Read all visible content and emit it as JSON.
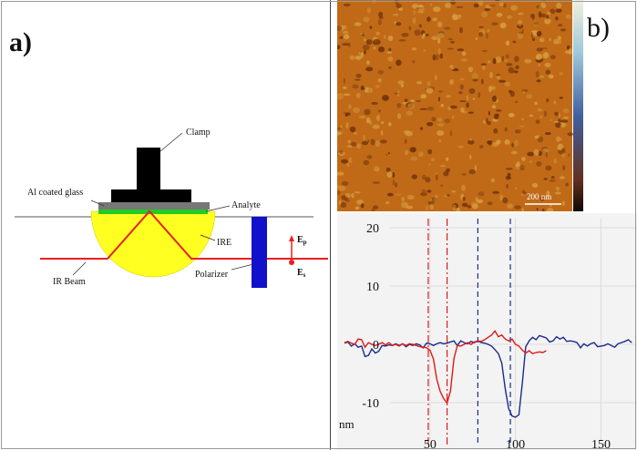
{
  "panel_a": {
    "label": "a)",
    "labels": {
      "clamp": "Clamp",
      "al_glass": "Al coated glass",
      "analyte": "Analyte",
      "ire": "IRE",
      "ir_beam": "IR Beam",
      "polarizer": "Polarizer",
      "ep_main": "E",
      "ep_sub": "p",
      "es_main": "E",
      "es_sub": "s"
    },
    "colors": {
      "clamp": "#000000",
      "glass": "#777777",
      "analyte": "#22cc22",
      "ire": "#ffff22",
      "beam": "#e82020",
      "polarizer": "#1111cc"
    }
  },
  "panel_b": {
    "label": "b)",
    "scale_bar": "200 nm",
    "afm_colors": {
      "base": "#c06a18",
      "dark": "#6a2e08",
      "light": "#d8a040"
    }
  },
  "chart_data": {
    "type": "line",
    "ylabel": "nm",
    "y_ticks": [
      "20",
      "10",
      "0",
      "-10"
    ],
    "x_ticks": [
      "50",
      "100",
      "150"
    ],
    "xlim": [
      0,
      170
    ],
    "ylim": [
      -15,
      20
    ],
    "grid": true,
    "series": [
      {
        "color": "#1a2a8c",
        "x": [
          0,
          2,
          4,
          6,
          8,
          10,
          12,
          14,
          16,
          18,
          20,
          22,
          24,
          26,
          28,
          30,
          32,
          34,
          36,
          38,
          40,
          42,
          44,
          46,
          48,
          50,
          52,
          54,
          56,
          58,
          60,
          62,
          64,
          66,
          68,
          70,
          72,
          74,
          76,
          78,
          80,
          82,
          84,
          86,
          88,
          90,
          92,
          94,
          96,
          98,
          100,
          102,
          104,
          106,
          108,
          110,
          112,
          114,
          116,
          118,
          120,
          122,
          124,
          126,
          128,
          130,
          132,
          134,
          136,
          138,
          140,
          142,
          144,
          146,
          148,
          150,
          152,
          154,
          156,
          158,
          160,
          162,
          164,
          166,
          168
        ],
        "y": [
          0.2,
          0.4,
          -0.3,
          0.1,
          -0.5,
          -0.3,
          -2.1,
          -1.9,
          -0.8,
          -1.5,
          -1.2,
          -0.2,
          -0.3,
          -0.1,
          -0.2,
          0.1,
          -0.2,
          0.1,
          -0.4,
          0.0,
          -0.2,
          0.1,
          -0.1,
          -0.6,
          0.2,
          0.1,
          -0.2,
          0.1,
          0.3,
          0.1,
          0.2,
          0.4,
          0.6,
          -0.2,
          0.6,
          0.3,
          0.1,
          0.5,
          0.3,
          0.6,
          0.3,
          0.2,
          0.0,
          -0.3,
          -0.9,
          -1.6,
          -3.2,
          -7.6,
          -11.0,
          -12.3,
          -12.5,
          -12.1,
          -6.6,
          -0.4,
          0.6,
          1.2,
          0.8,
          1.5,
          1.3,
          1.1,
          0.4,
          0.6,
          1.3,
          0.9,
          1.2,
          0.5,
          0.6,
          0.5,
          0.3,
          -0.6,
          0.1,
          -0.3,
          0.1,
          0.3,
          -0.4,
          -0.3,
          -0.2,
          0.1,
          -0.2,
          -0.5,
          0.1,
          0.3,
          0.5,
          0.8,
          0.3
        ]
      },
      {
        "color": "#e01818",
        "x": [
          0,
          2,
          4,
          6,
          8,
          10,
          12,
          14,
          16,
          18,
          20,
          22,
          24,
          26,
          28,
          30,
          32,
          34,
          36,
          38,
          40,
          42,
          44,
          46,
          48,
          50,
          52,
          54,
          56,
          58,
          60,
          62,
          64,
          66,
          68,
          70,
          72,
          74,
          76,
          78,
          80,
          82,
          84,
          86,
          88,
          90,
          92,
          94,
          96,
          98,
          100,
          102,
          104,
          106,
          108,
          110,
          112,
          114,
          116,
          118
        ],
        "y": [
          0.3,
          0.5,
          0.2,
          0.0,
          0.9,
          0.8,
          -0.5,
          0.3,
          0.0,
          -0.2,
          0.0,
          0.3,
          -0.1,
          0.3,
          -0.2,
          0.0,
          -0.3,
          0.1,
          -0.2,
          0.1,
          0.0,
          -0.2,
          -0.4,
          -0.5,
          -0.6,
          -1.0,
          -2.5,
          -6.0,
          -8.1,
          -9.3,
          -10.1,
          -8.0,
          -2.5,
          -0.2,
          -0.3,
          0.0,
          0.3,
          0.0,
          0.4,
          0.6,
          0.5,
          0.8,
          1.2,
          1.6,
          2.3,
          1.3,
          1.6,
          0.9,
          0.6,
          0.9,
          0.0,
          -0.3,
          -1.0,
          -1.5,
          -1.1,
          -1.6,
          -1.4,
          -1.3,
          -1.4,
          -1.1
        ]
      }
    ],
    "reference_lines": [
      {
        "x": 49,
        "color": "#e01818"
      },
      {
        "x": 60,
        "color": "#e01818"
      },
      {
        "x": 78,
        "color": "#1a2a8c"
      },
      {
        "x": 97,
        "color": "#1a2a8c"
      }
    ]
  }
}
